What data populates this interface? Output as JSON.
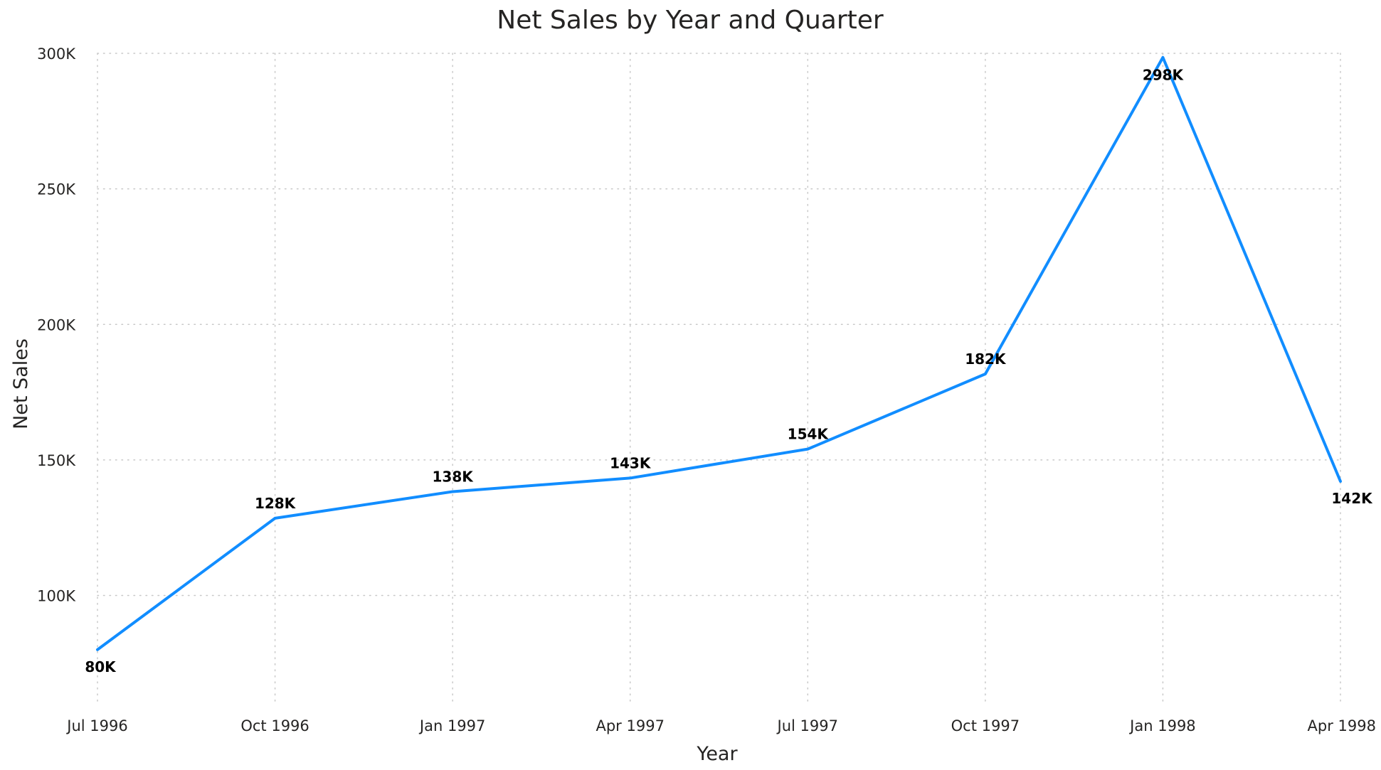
{
  "chart_data": {
    "type": "line",
    "title": "Net Sales by Year and Quarter",
    "xlabel": "Year",
    "ylabel": "Net Sales",
    "categories": [
      "Jul 1996",
      "Oct 1996",
      "Jan 1997",
      "Apr 1997",
      "Jul 1997",
      "Oct 1997",
      "Jan 1998",
      "Apr 1998"
    ],
    "series": [
      {
        "values": [
          80000,
          128500,
          138300,
          143300,
          154000,
          181700,
          298500,
          142100
        ],
        "data_labels": [
          "80K",
          "128K",
          "138K",
          "143K",
          "154K",
          "182K",
          "298K",
          "142K"
        ],
        "color": "#118dff"
      }
    ],
    "ylim": [
      60000,
      300000
    ],
    "yticks": [
      100000,
      150000,
      200000,
      250000,
      300000
    ],
    "ytick_labels": [
      "100K",
      "150K",
      "200K",
      "250K",
      "300K"
    ],
    "grid": true,
    "legend": "none"
  }
}
